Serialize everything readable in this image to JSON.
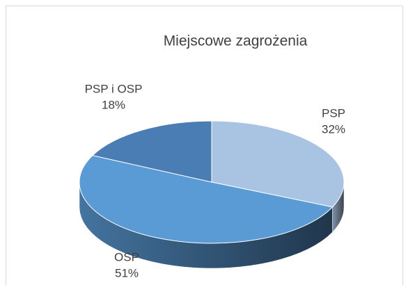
{
  "chart_data": {
    "type": "pie3d",
    "title": "Miejscowe zagrożenia",
    "categories": [
      "PSP",
      "OSP",
      "PSP i OSP"
    ],
    "values": [
      32,
      51,
      18
    ],
    "value_labels": [
      "32%",
      "51%",
      "18%"
    ],
    "colors": [
      "#a9c3e3",
      "#5b9bd5",
      "#4a7db4"
    ]
  }
}
